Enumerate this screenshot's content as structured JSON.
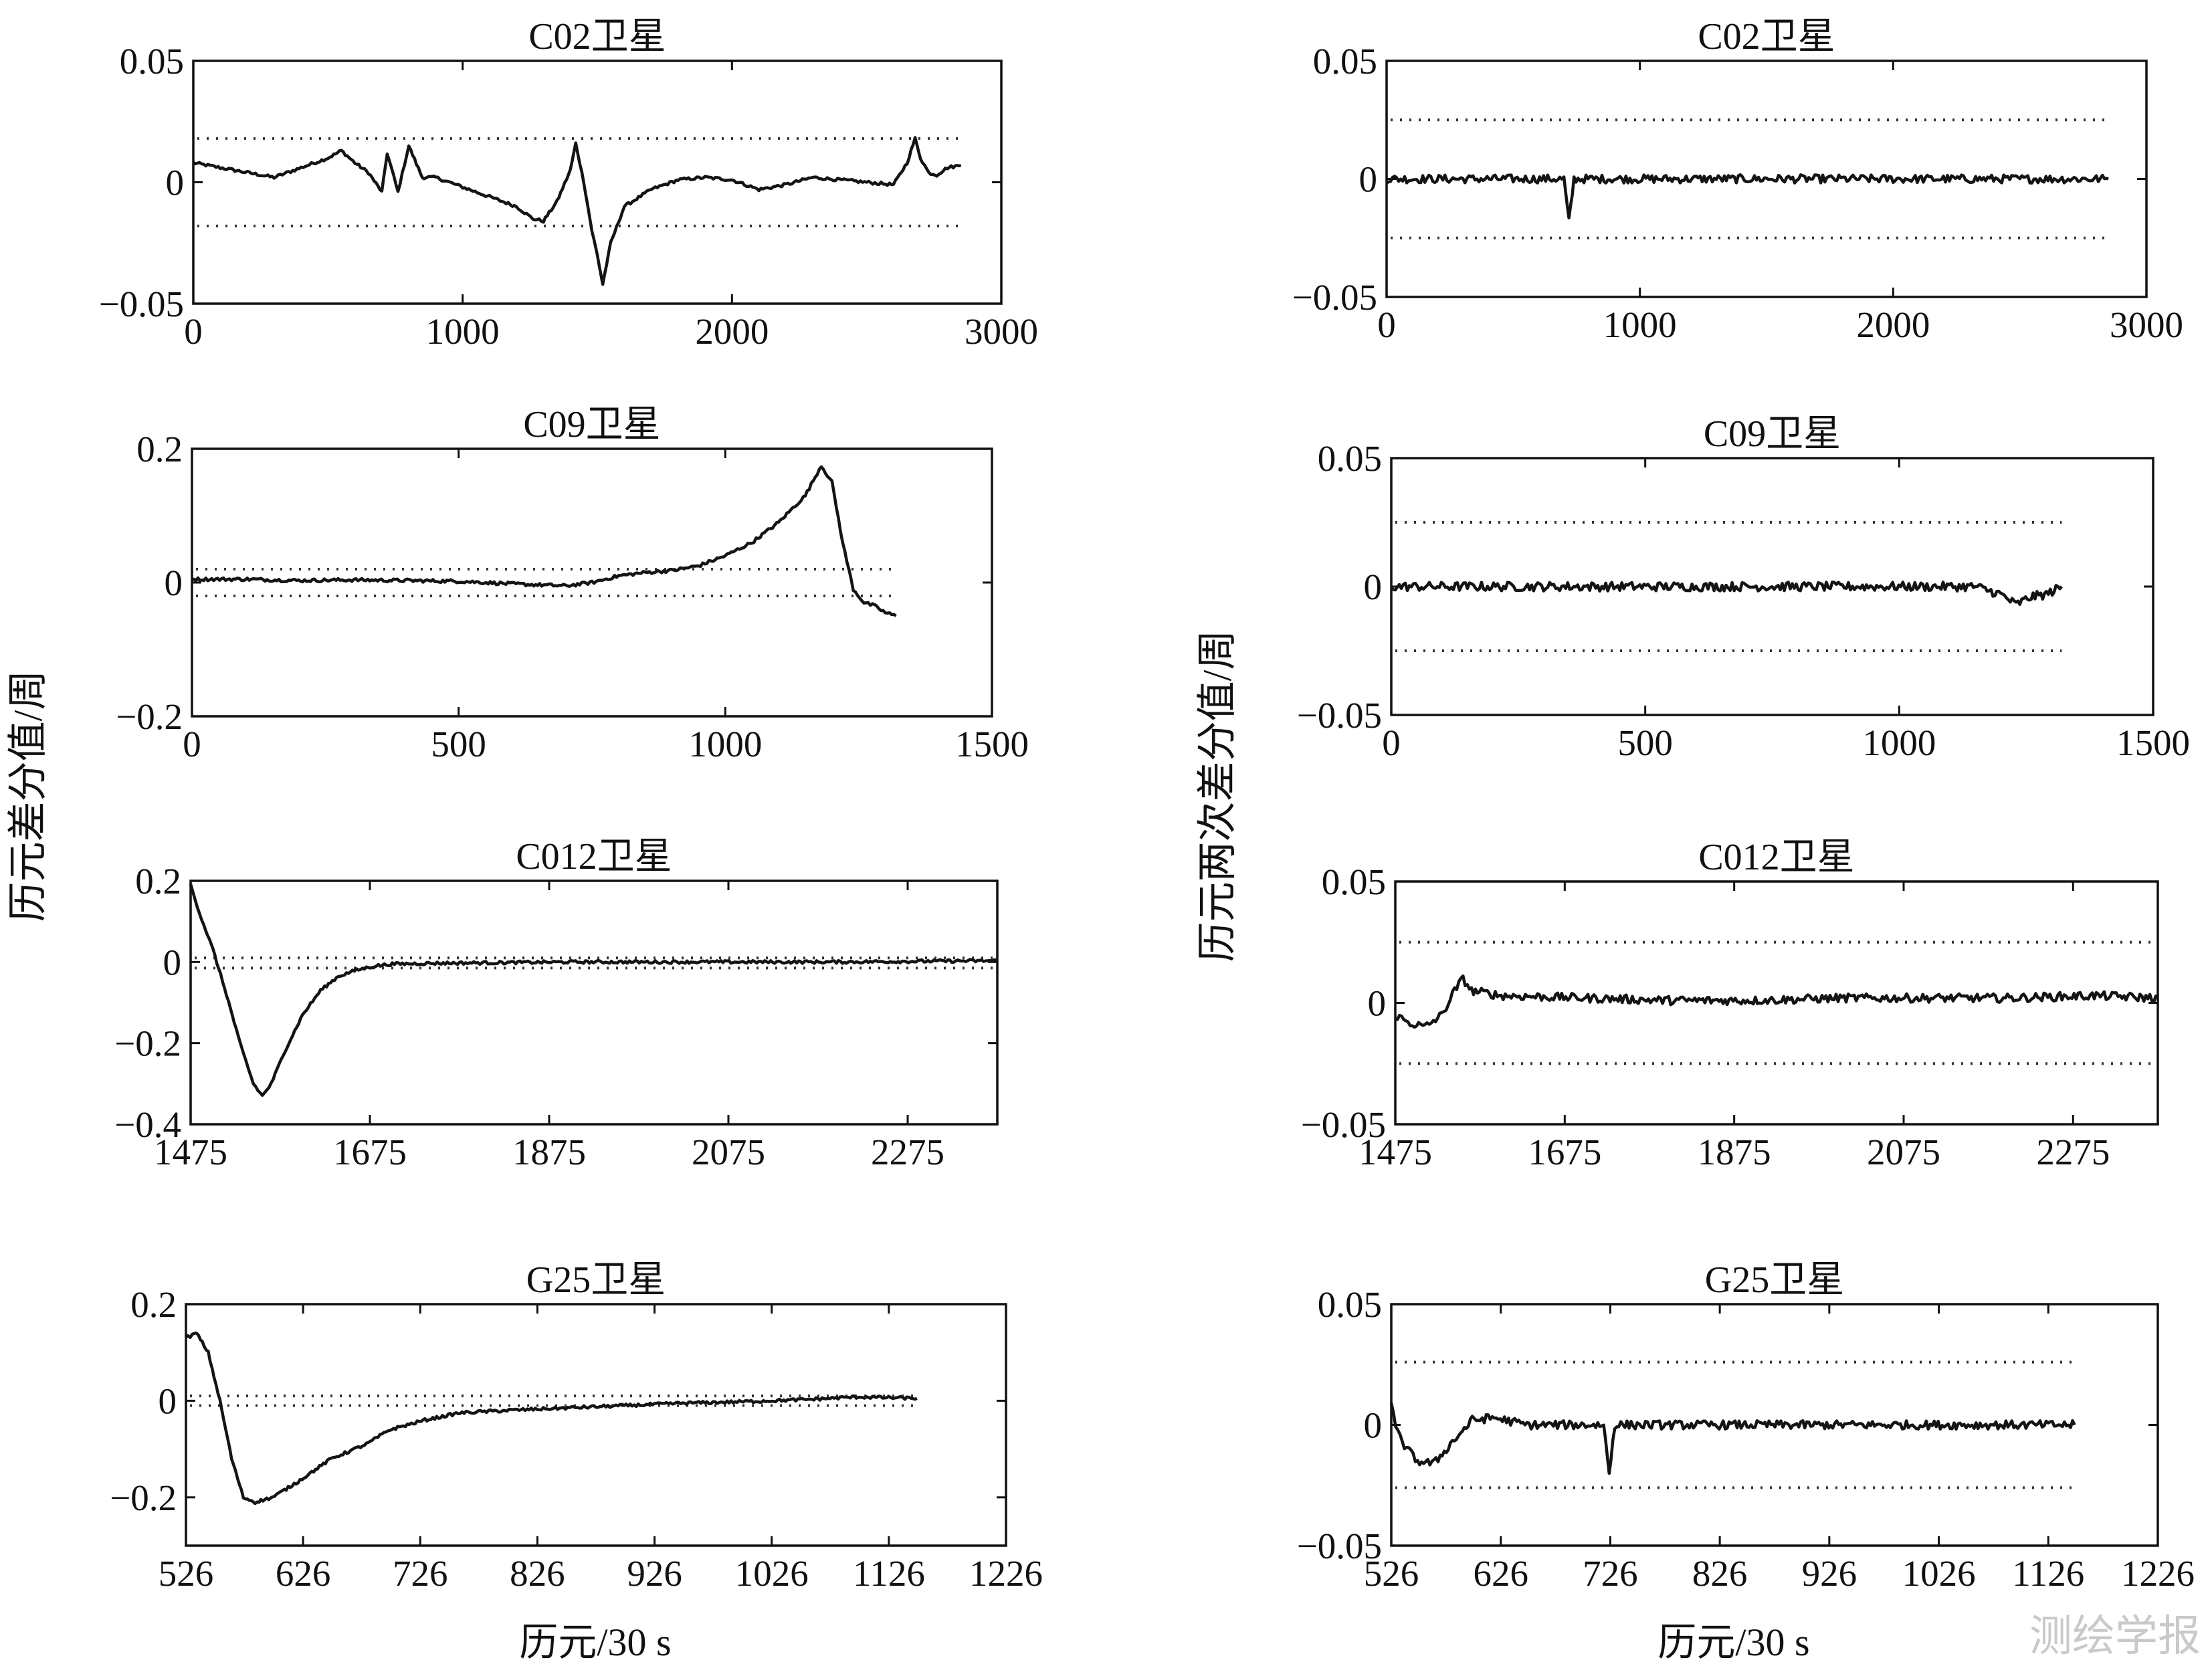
{
  "chart_data": [
    {
      "type": "line",
      "id": "L0",
      "title": "C02卫星",
      "xlim": [
        0,
        3000
      ],
      "ylim": [
        -0.05,
        0.05
      ],
      "x_ticks": [
        "0",
        "1000",
        "2000",
        "3000"
      ],
      "y_ticks": [
        "0.05",
        "0",
        "−0.05"
      ],
      "thresholds": [
        0.018,
        -0.018
      ],
      "series": [
        {
          "x": [
            0,
            100,
            200,
            300,
            400,
            500,
            550,
            600,
            650,
            700,
            720,
            760,
            800,
            850,
            900,
            1000,
            1100,
            1200,
            1260,
            1300,
            1350,
            1400,
            1420,
            1450,
            1480,
            1500,
            1520,
            1550,
            1600,
            1700,
            1800,
            1900,
            2000,
            2100,
            2200,
            2300,
            2400,
            2500,
            2600,
            2650,
            2680,
            2700,
            2730,
            2760,
            2800,
            2850
          ],
          "y": [
            0.008,
            0.006,
            0.004,
            0.002,
            0.006,
            0.01,
            0.013,
            0.008,
            0.004,
            -0.004,
            0.012,
            -0.004,
            0.015,
            0.002,
            0.002,
            -0.002,
            -0.006,
            -0.01,
            -0.015,
            -0.016,
            -0.008,
            0.005,
            0.016,
            0.0,
            -0.02,
            -0.03,
            -0.042,
            -0.025,
            -0.01,
            -0.003,
            0.001,
            0.002,
            0.001,
            -0.003,
            -0.001,
            0.002,
            0.001,
            0.0,
            -0.001,
            0.008,
            0.018,
            0.01,
            0.004,
            0.003,
            0.006,
            0.007
          ]
        }
      ]
    },
    {
      "type": "line",
      "id": "R0",
      "title": "C02卫星",
      "xlim": [
        0,
        3000
      ],
      "ylim": [
        -0.05,
        0.05
      ],
      "x_ticks": [
        "0",
        "1000",
        "2000",
        "3000"
      ],
      "y_ticks": [
        "0.05",
        "0",
        "−0.05"
      ],
      "thresholds": [
        0.025,
        -0.025
      ],
      "series": [
        {
          "x": [
            0,
            500,
            700,
            720,
            740,
            1000,
            1500,
            2000,
            2500,
            2850
          ],
          "y": [
            0.0,
            0.0,
            0.0,
            -0.018,
            0.0,
            0.0,
            0.0,
            0.0,
            0.0,
            0.0
          ]
        }
      ]
    },
    {
      "type": "line",
      "id": "L1",
      "title": "C09卫星",
      "xlim": [
        0,
        1500
      ],
      "ylim": [
        -0.2,
        0.2
      ],
      "x_ticks": [
        "0",
        "500",
        "1000",
        "1500"
      ],
      "y_ticks": [
        "0.2",
        "0",
        "−0.2"
      ],
      "thresholds": [
        0.02,
        -0.02
      ],
      "series": [
        {
          "x": [
            0,
            100,
            200,
            300,
            400,
            500,
            600,
            700,
            750,
            800,
            850,
            900,
            950,
            1000,
            1050,
            1100,
            1150,
            1180,
            1200,
            1220,
            1240,
            1260,
            1280,
            1300,
            1320
          ],
          "y": [
            0.005,
            0.005,
            0.003,
            0.004,
            0.003,
            0.002,
            -0.002,
            -0.005,
            0.0,
            0.01,
            0.015,
            0.018,
            0.025,
            0.04,
            0.06,
            0.09,
            0.13,
            0.175,
            0.15,
            0.06,
            -0.01,
            -0.03,
            -0.035,
            -0.045,
            -0.05
          ]
        }
      ]
    },
    {
      "type": "line",
      "id": "R1",
      "title": "C09卫星",
      "xlim": [
        0,
        1500
      ],
      "ylim": [
        -0.05,
        0.05
      ],
      "x_ticks": [
        "0",
        "500",
        "1000",
        "1500"
      ],
      "y_ticks": [
        "0.05",
        "0",
        "−0.05"
      ],
      "thresholds": [
        0.025,
        -0.025
      ],
      "series": [
        {
          "x": [
            0,
            300,
            600,
            900,
            1150,
            1200,
            1230,
            1260,
            1290,
            1320
          ],
          "y": [
            0.0,
            0.0,
            0.0,
            0.0,
            0.0,
            -0.003,
            -0.007,
            -0.004,
            -0.003,
            0.0
          ]
        }
      ]
    },
    {
      "type": "line",
      "id": "L2",
      "title": "C012卫星",
      "xlim": [
        1475,
        2375
      ],
      "ylim": [
        -0.4,
        0.2
      ],
      "x_ticks": [
        "1475",
        "1675",
        "1875",
        "2075",
        "2275"
      ],
      "y_ticks": [
        "0.2",
        "0",
        "−0.2",
        "−0.4"
      ],
      "thresholds": [
        0.01,
        -0.015
      ],
      "series": [
        {
          "x": [
            1475,
            1485,
            1500,
            1515,
            1530,
            1545,
            1555,
            1565,
            1580,
            1600,
            1620,
            1640,
            1660,
            1680,
            1700,
            1750,
            1800,
            1900,
            2000,
            2100,
            2200,
            2300,
            2375
          ],
          "y": [
            0.19,
            0.12,
            0.03,
            -0.08,
            -0.2,
            -0.3,
            -0.33,
            -0.3,
            -0.22,
            -0.13,
            -0.07,
            -0.035,
            -0.02,
            -0.01,
            -0.005,
            -0.003,
            -0.002,
            0.0,
            0.0,
            0.0,
            0.0,
            0.002,
            0.003
          ]
        }
      ]
    },
    {
      "type": "line",
      "id": "R2",
      "title": "C012卫星",
      "xlim": [
        1475,
        2375
      ],
      "ylim": [
        -0.05,
        0.05
      ],
      "x_ticks": [
        "1475",
        "1675",
        "1875",
        "2075",
        "2275"
      ],
      "y_ticks": [
        "0.05",
        "0",
        "−0.05"
      ],
      "thresholds": [
        0.025,
        -0.025
      ],
      "series": [
        {
          "x": [
            1475,
            1490,
            1510,
            1530,
            1545,
            1555,
            1565,
            1600,
            1700,
            1800,
            1900,
            2000,
            2100,
            2200,
            2300,
            2375
          ],
          "y": [
            -0.005,
            -0.008,
            -0.01,
            -0.005,
            0.005,
            0.01,
            0.005,
            0.003,
            0.002,
            0.001,
            0.001,
            0.002,
            0.002,
            0.002,
            0.003,
            0.002
          ]
        }
      ]
    },
    {
      "type": "line",
      "id": "L3",
      "title": "G25卫星",
      "xlim": [
        526,
        1226
      ],
      "ylim": [
        -0.3,
        0.2
      ],
      "x_ticks": [
        "526",
        "626",
        "726",
        "826",
        "926",
        "1026",
        "1126",
        "1226"
      ],
      "y_ticks": [
        "0.2",
        "0",
        "−0.2"
      ],
      "thresholds": [
        0.01,
        -0.01
      ],
      "series": [
        {
          "x": [
            526,
            535,
            545,
            555,
            565,
            575,
            585,
            600,
            620,
            650,
            680,
            700,
            730,
            760,
            800,
            850,
            900,
            950,
            1000,
            1050,
            1100,
            1150
          ],
          "y": [
            0.13,
            0.14,
            0.1,
            0.0,
            -0.12,
            -0.2,
            -0.21,
            -0.2,
            -0.17,
            -0.12,
            -0.09,
            -0.06,
            -0.04,
            -0.025,
            -0.02,
            -0.015,
            -0.01,
            -0.005,
            -0.002,
            0.002,
            0.008,
            0.005
          ]
        }
      ]
    },
    {
      "type": "line",
      "id": "R3",
      "title": "G25卫星",
      "xlim": [
        526,
        1226
      ],
      "ylim": [
        -0.05,
        0.05
      ],
      "x_ticks": [
        "526",
        "626",
        "726",
        "826",
        "926",
        "1026",
        "1126",
        "1226"
      ],
      "y_ticks": [
        "0.05",
        "0",
        "−0.05"
      ],
      "thresholds": [
        0.026,
        -0.026
      ],
      "series": [
        {
          "x": [
            526,
            530,
            540,
            550,
            565,
            580,
            600,
            620,
            650,
            700,
            720,
            725,
            730,
            760,
            800,
            900,
            1000,
            1100,
            1150
          ],
          "y": [
            0.01,
            -0.002,
            -0.01,
            -0.015,
            -0.016,
            -0.008,
            0.002,
            0.003,
            0.0,
            0.0,
            0.0,
            -0.02,
            0.0,
            0.0,
            0.0,
            0.0,
            0.0,
            0.0,
            0.0
          ]
        }
      ]
    }
  ],
  "labels": {
    "left_ylabel": "历元差分值/周",
    "right_ylabel": "历元两次差分值/周",
    "left_xlabel": "历元/30 s",
    "right_xlabel": "历元/30 s",
    "watermark": "测绘学报"
  }
}
